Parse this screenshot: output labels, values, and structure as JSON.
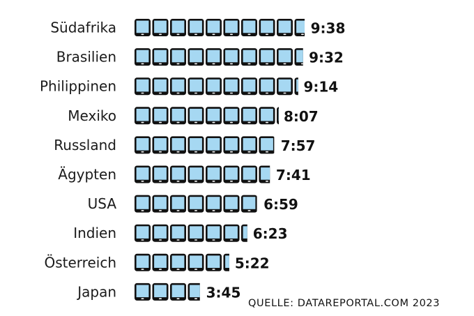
{
  "chart_data": {
    "type": "bar",
    "unit_icon": "tablet-icon",
    "categories": [
      "Südafrika",
      "Brasilien",
      "Philippinen",
      "Mexiko",
      "Russland",
      "Ägypten",
      "USA",
      "Indien",
      "Österreich",
      "Japan"
    ],
    "values": [
      9.633,
      9.533,
      9.233,
      8.117,
      7.95,
      7.683,
      6.983,
      6.383,
      5.367,
      3.75
    ],
    "value_labels": [
      "9:38",
      "9:32",
      "9:14",
      "8:07",
      "7:57",
      "7:41",
      "6:59",
      "6:23",
      "5:22",
      "3:45"
    ],
    "colors": {
      "fill": "#a6d8f2",
      "outline": "#111111"
    }
  },
  "source": "QUELLE: DATAREPORTAL.COM 2023"
}
